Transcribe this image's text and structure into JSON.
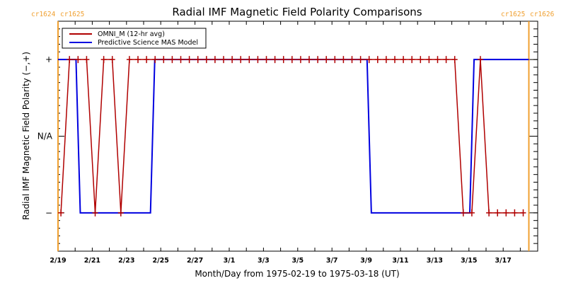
{
  "chart_data": {
    "type": "line",
    "title": "Radial IMF Magnetic Field Polarity Comparisons",
    "xlabel": "Month/Day from 1975-02-19 to 1975-03-18 (UT)",
    "ylabel": "Radial IMF Magnetic Field Polarity (−,+)",
    "x_units": "days since 1975-02-19 00:00 UT",
    "xlim": [
      0,
      27.5
    ],
    "ylim": [
      -1.5,
      1.5
    ],
    "y_ticks": [
      {
        "value": 1,
        "label": "+"
      },
      {
        "value": 0,
        "label": "N/A"
      },
      {
        "value": -1,
        "label": "−"
      }
    ],
    "x_ticks": [
      {
        "value": 0,
        "label": "2/19"
      },
      {
        "value": 2,
        "label": "2/21"
      },
      {
        "value": 4,
        "label": "2/23"
      },
      {
        "value": 6,
        "label": "2/25"
      },
      {
        "value": 8,
        "label": "2/27"
      },
      {
        "value": 10,
        "label": "3/1"
      },
      {
        "value": 12,
        "label": "3/3"
      },
      {
        "value": 14,
        "label": "3/5"
      },
      {
        "value": 16,
        "label": "3/7"
      },
      {
        "value": 18,
        "label": "3/9"
      },
      {
        "value": 20,
        "label": "3/11"
      },
      {
        "value": 22,
        "label": "3/13"
      },
      {
        "value": 24,
        "label": "3/15"
      },
      {
        "value": 26,
        "label": "3/17"
      }
    ],
    "carrington_markers": [
      {
        "value": 0,
        "left_label": "cr1624",
        "right_label": "cr1625",
        "color": "#f0a030"
      },
      {
        "value": 27.5,
        "left_label": "cr1625",
        "right_label": "cr1626",
        "color": "#f0a030"
      }
    ],
    "series": [
      {
        "name": "OMNI_M (12-hr avg)",
        "color": "#b00000",
        "marker": "+",
        "points": [
          [
            0.17,
            -1
          ],
          [
            0.67,
            1
          ],
          [
            1.17,
            1
          ],
          [
            1.67,
            1
          ],
          [
            2.17,
            -1
          ],
          [
            2.67,
            1
          ],
          [
            3.17,
            1
          ],
          [
            3.67,
            -1
          ],
          [
            4.17,
            1
          ],
          [
            4.67,
            1
          ],
          [
            5.17,
            1
          ],
          [
            5.67,
            1
          ],
          [
            6.17,
            1
          ],
          [
            6.67,
            1
          ],
          [
            7.17,
            1
          ],
          [
            7.67,
            1
          ],
          [
            8.17,
            1
          ],
          [
            8.67,
            1
          ],
          [
            9.17,
            1
          ],
          [
            9.67,
            1
          ],
          [
            10.17,
            1
          ],
          [
            10.67,
            1
          ],
          [
            11.17,
            1
          ],
          [
            11.67,
            1
          ],
          [
            12.17,
            1
          ],
          [
            12.67,
            1
          ],
          [
            13.17,
            1
          ],
          [
            13.67,
            1
          ],
          [
            14.17,
            1
          ],
          [
            14.67,
            1
          ],
          [
            15.17,
            1
          ],
          [
            15.67,
            1
          ],
          [
            16.17,
            1
          ],
          [
            16.67,
            1
          ],
          [
            17.17,
            1
          ],
          [
            17.67,
            1
          ],
          [
            18.17,
            1
          ],
          [
            18.67,
            1
          ],
          [
            19.17,
            1
          ],
          [
            19.67,
            1
          ],
          [
            20.17,
            1
          ],
          [
            20.67,
            1
          ],
          [
            21.17,
            1
          ],
          [
            21.67,
            1
          ],
          [
            22.17,
            1
          ],
          [
            22.67,
            1
          ],
          [
            23.17,
            1
          ],
          [
            23.67,
            -1
          ],
          [
            24.17,
            -1
          ],
          [
            24.67,
            1
          ],
          [
            25.17,
            -1
          ],
          [
            25.67,
            -1
          ],
          [
            26.17,
            -1
          ],
          [
            26.67,
            -1
          ],
          [
            27.17,
            -1
          ]
        ]
      },
      {
        "name": "Predictive Science MAS Model",
        "color": "#0000e0",
        "marker": "none",
        "points": [
          [
            0,
            1
          ],
          [
            1.05,
            1
          ],
          [
            1.3,
            -1
          ],
          [
            5.4,
            -1
          ],
          [
            5.65,
            1
          ],
          [
            18.05,
            1
          ],
          [
            18.3,
            -1
          ],
          [
            24.05,
            -1
          ],
          [
            24.3,
            1
          ],
          [
            27.5,
            1
          ]
        ]
      }
    ],
    "legend": {
      "placement": "top-left"
    },
    "grid": false
  }
}
